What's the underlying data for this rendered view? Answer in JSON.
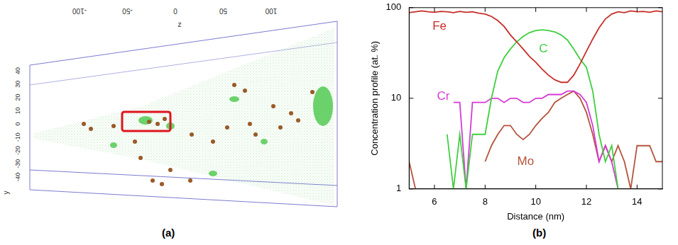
{
  "figure_a": {
    "label": "(a)",
    "z_label": "z",
    "z_ticks": [
      -100,
      -50,
      0,
      50,
      100
    ],
    "y_label": "y",
    "y_ticks": [
      -40,
      -30,
      -20,
      -10,
      0,
      10,
      20,
      30,
      40
    ]
  },
  "chart_data": {
    "type": "line",
    "panel_label": "(b)",
    "x_label": "Distance (nm)",
    "y_label": "Concentration profile (at. %)",
    "x": [
      5,
      5.25,
      5.5,
      5.75,
      6,
      6.25,
      6.5,
      6.75,
      7,
      7.25,
      7.5,
      7.75,
      8,
      8.25,
      8.5,
      8.75,
      9,
      9.25,
      9.5,
      9.75,
      10,
      10.25,
      10.5,
      10.75,
      11,
      11.25,
      11.5,
      11.75,
      12,
      12.25,
      12.5,
      12.75,
      13,
      13.25,
      13.5,
      13.75,
      14,
      14.25,
      14.5,
      14.75,
      15
    ],
    "xlim": [
      5,
      15
    ],
    "xticks": [
      6,
      8,
      10,
      12,
      14
    ],
    "ylim": [
      1,
      100
    ],
    "yticks": [
      1,
      10,
      100
    ],
    "log": "y",
    "grid": false,
    "series": [
      {
        "name": "Fe",
        "color": "#c62f2a",
        "values": [
          88,
          90,
          92,
          90,
          89,
          91,
          90,
          88,
          91,
          89,
          90,
          87,
          85,
          80,
          72,
          62,
          50,
          42,
          35,
          29,
          25,
          21,
          18,
          16,
          15,
          15,
          18,
          24,
          33,
          45,
          60,
          75,
          85,
          90,
          88,
          92,
          90,
          91,
          89,
          92,
          90
        ]
      },
      {
        "name": "C",
        "color": "#3fcf3f",
        "values": [
          null,
          null,
          null,
          null,
          null,
          null,
          4,
          1,
          4,
          1,
          4,
          4,
          4,
          10,
          20,
          28,
          35,
          42,
          48,
          53,
          56,
          57,
          56,
          54,
          50,
          44,
          35,
          27,
          22,
          12,
          4,
          2,
          3,
          1,
          null,
          null,
          null,
          null,
          null,
          null,
          null
        ]
      },
      {
        "name": "Cr",
        "color": "#d63ad6",
        "values": [
          null,
          null,
          null,
          null,
          null,
          null,
          null,
          9,
          9,
          1,
          9,
          9,
          9,
          10,
          10,
          9,
          10,
          10,
          9,
          9,
          10,
          10,
          11,
          11,
          11,
          12,
          12,
          11,
          9,
          5,
          2,
          3,
          2,
          1,
          null,
          null,
          null,
          null,
          null,
          null,
          null
        ]
      },
      {
        "name": "Mo",
        "color": "#b5533c",
        "values": [
          2,
          1,
          null,
          null,
          null,
          null,
          null,
          null,
          null,
          null,
          null,
          null,
          2,
          3,
          4,
          5,
          5,
          4,
          3.5,
          4,
          5,
          6,
          7,
          9,
          10,
          11,
          12,
          10,
          7,
          4,
          2,
          3,
          2,
          3,
          2,
          1,
          3,
          3,
          3,
          2,
          2
        ]
      }
    ]
  }
}
